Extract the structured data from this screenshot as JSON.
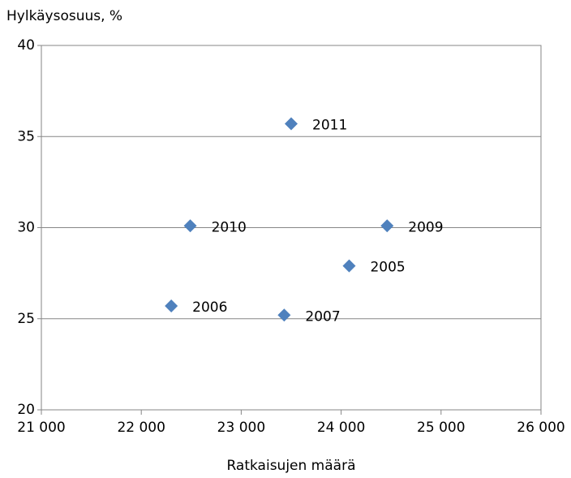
{
  "chart_data": {
    "type": "scatter",
    "y_label": "Hylkäysosuus, %",
    "x_label": "Ratkaisujen määrä",
    "series": [
      {
        "color": "#4f81bd",
        "x": [
          23500,
          22490,
          24460,
          24080,
          22300,
          23430
        ],
        "values": [
          35.7,
          30.1,
          30.1,
          27.9,
          25.7,
          25.2
        ],
        "labels": [
          "2011",
          "2010",
          "2009",
          "2005",
          "2006",
          "2007"
        ]
      }
    ],
    "xlim": [
      21000,
      26000
    ],
    "xticks": [
      {
        "value": 21000,
        "label": "21 000"
      },
      {
        "value": 22000,
        "label": "22 000"
      },
      {
        "value": 23000,
        "label": "23 000"
      },
      {
        "value": 24000,
        "label": "24 000"
      },
      {
        "value": 25000,
        "label": "25 000"
      },
      {
        "value": 26000,
        "label": "26 000"
      }
    ],
    "ylim": [
      20,
      40
    ],
    "yticks": [
      20,
      25,
      30,
      35,
      40
    ],
    "grid": true
  }
}
